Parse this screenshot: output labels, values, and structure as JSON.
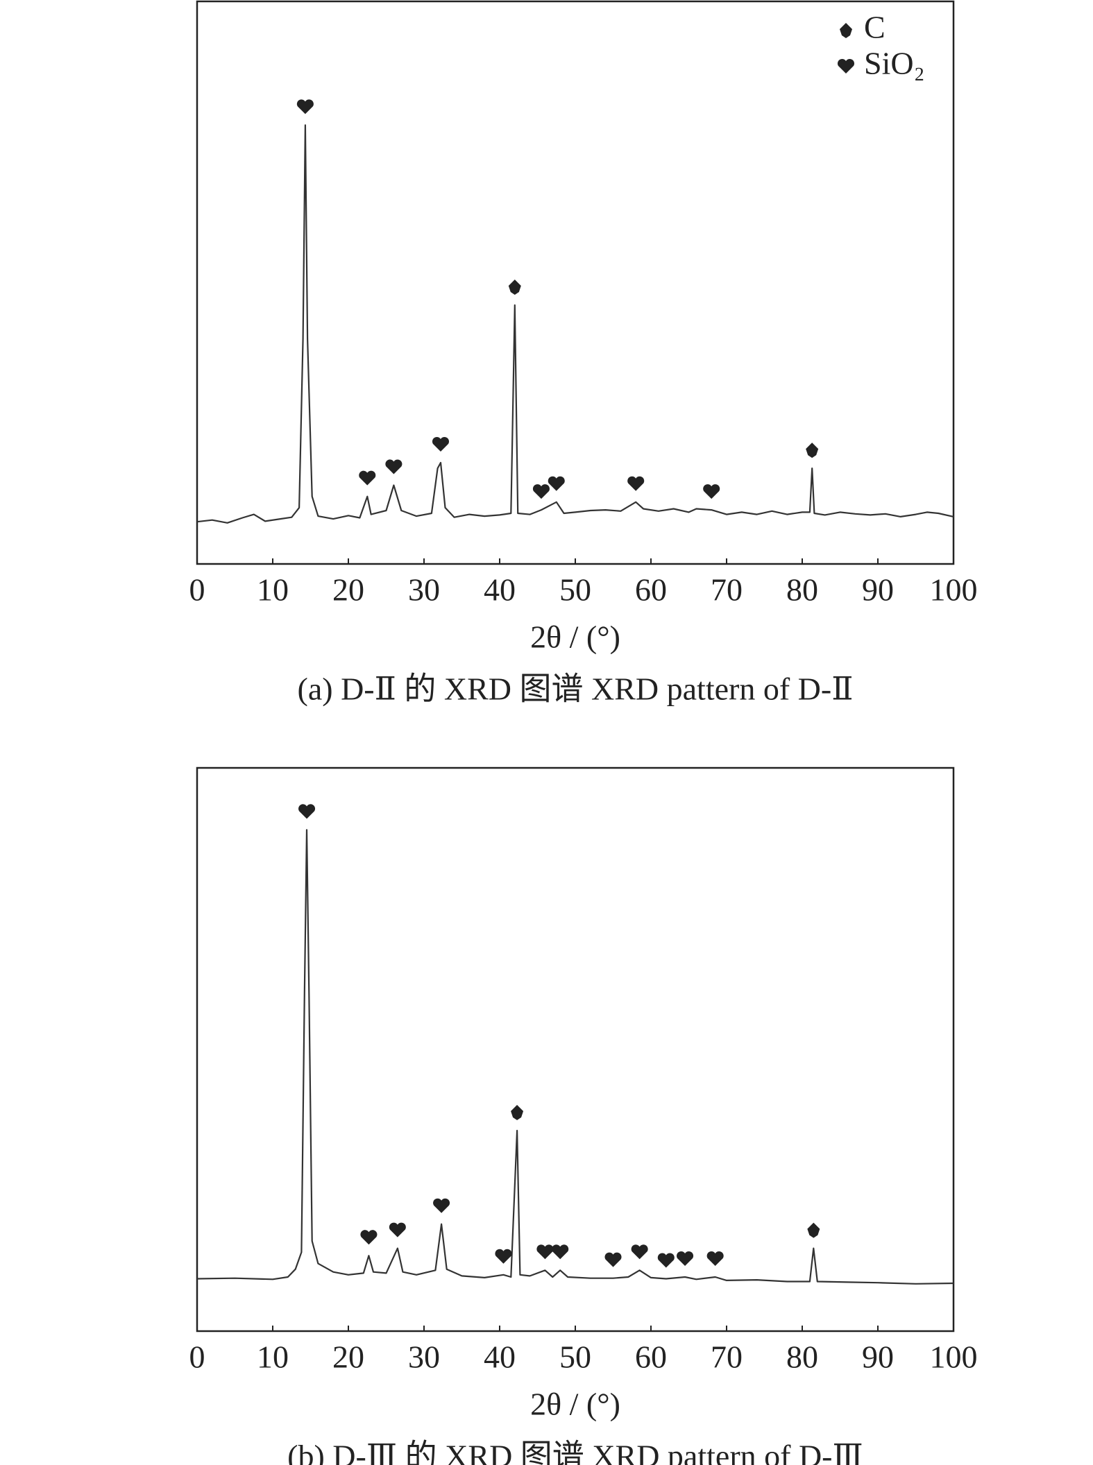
{
  "chart_data": [
    {
      "type": "line",
      "xlabel": "2θ / (°)",
      "caption": "(a) D-Ⅱ 的 XRD 图谱 XRD pattern of D-Ⅱ",
      "xlim": [
        0,
        100
      ],
      "xticks": [
        0,
        10,
        20,
        30,
        40,
        50,
        60,
        70,
        80,
        90,
        100
      ],
      "ylim": [
        0,
        100
      ],
      "legend": "upper right",
      "pattern": {
        "color": "#333333",
        "x": [
          0,
          2,
          4,
          6,
          7.5,
          9,
          11,
          12.5,
          13.5,
          14,
          14.3,
          14.6,
          15.2,
          16,
          18,
          20,
          21.5,
          22.5,
          23,
          25,
          26,
          27,
          29,
          31,
          31.8,
          32.2,
          32.8,
          34,
          36,
          38,
          40,
          41.5,
          42,
          42.4,
          44,
          45.5,
          47.5,
          48.5,
          50,
          52,
          54,
          56,
          58,
          59,
          61,
          63,
          65,
          66,
          68,
          70,
          72,
          74,
          76,
          78,
          80,
          81,
          81.3,
          81.6,
          83,
          85,
          87,
          89,
          91,
          93,
          95,
          96.5,
          98,
          100
        ],
        "values": [
          7.5,
          7.8,
          7.3,
          8.2,
          8.8,
          7.6,
          8.0,
          8.3,
          10,
          40,
          78,
          40,
          12,
          8.5,
          8.0,
          8.6,
          8.2,
          12,
          8.8,
          9.5,
          14,
          9.5,
          8.5,
          9,
          17,
          18,
          10,
          8.3,
          8.8,
          8.5,
          8.7,
          9,
          46,
          9,
          8.8,
          9.6,
          11,
          9,
          9.2,
          9.5,
          9.6,
          9.4,
          11,
          9.8,
          9.4,
          9.8,
          9.2,
          9.8,
          9.6,
          8.8,
          9.2,
          8.8,
          9.4,
          8.8,
          9.2,
          9.2,
          17,
          9,
          8.7,
          9.2,
          8.9,
          8.7,
          8.9,
          8.4,
          8.8,
          9.2,
          9.0,
          8.4
        ]
      },
      "series": [
        {
          "name": "C",
          "marker": "club",
          "color": "#222222",
          "x": [
            42,
            81.3
          ],
          "values": [
            46,
            17
          ]
        },
        {
          "name": "SiO₂",
          "marker": "heart",
          "color": "#222222",
          "x": [
            14.3,
            22.5,
            26,
            32.2,
            45.5,
            47.5,
            58,
            68
          ],
          "values": [
            78,
            12,
            14,
            18,
            9.6,
            11,
            11,
            9.6
          ]
        }
      ]
    },
    {
      "type": "line",
      "xlabel": "2θ / (°)",
      "caption": "(b) D-Ⅲ 的 XRD 图谱 XRD pattern of D-Ⅲ",
      "xlim": [
        0,
        100
      ],
      "xticks": [
        0,
        10,
        20,
        30,
        40,
        50,
        60,
        70,
        80,
        90,
        100
      ],
      "ylim": [
        0,
        100
      ],
      "pattern": {
        "color": "#333333",
        "x": [
          0,
          5,
          10,
          12,
          13,
          13.8,
          14.2,
          14.5,
          14.8,
          15.2,
          16,
          18,
          20,
          22,
          22.7,
          23.3,
          25,
          26.5,
          27.2,
          29,
          31.5,
          32.3,
          33,
          35,
          38,
          40.5,
          41.5,
          42.3,
          42.7,
          44,
          46,
          47,
          48,
          49,
          52,
          55,
          57,
          58.5,
          60,
          62,
          64.5,
          66,
          68.5,
          70,
          74,
          78,
          81,
          81.5,
          82,
          86,
          90,
          95,
          100
        ],
        "values": [
          9.3,
          9.4,
          9.2,
          9.6,
          11,
          14,
          60,
          89,
          60,
          16,
          12,
          10.5,
          10,
          10.3,
          13.4,
          10.5,
          10.3,
          14.7,
          10.5,
          10,
          10.8,
          19,
          11,
          9.8,
          9.5,
          10,
          9.6,
          35.6,
          10,
          9.8,
          10.8,
          9.6,
          10.8,
          9.6,
          9.4,
          9.4,
          9.6,
          10.8,
          9.5,
          9.3,
          9.6,
          9.2,
          9.6,
          9,
          9.1,
          8.8,
          8.8,
          14.7,
          8.8,
          8.7,
          8.6,
          8.4,
          8.5
        ]
      },
      "series": [
        {
          "name": "C",
          "marker": "club",
          "color": "#222222",
          "x": [
            42.3,
            81.5
          ],
          "values": [
            35.6,
            14.7
          ]
        },
        {
          "name": "SiO₂",
          "marker": "heart",
          "color": "#222222",
          "x": [
            14.5,
            22.7,
            26.5,
            32.3,
            40.5,
            46,
            48,
            55,
            58.5,
            62,
            64.5,
            68.5
          ],
          "values": [
            89,
            13.4,
            14.7,
            19,
            10,
            10.8,
            10.8,
            9.4,
            10.8,
            9.3,
            9.6,
            9.6
          ]
        }
      ]
    }
  ]
}
